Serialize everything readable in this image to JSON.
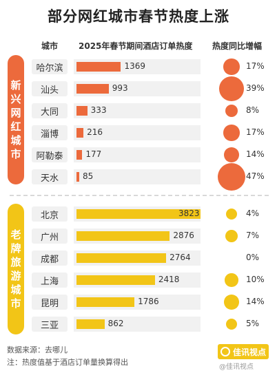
{
  "title": "部分网红城市春节热度上涨",
  "headers": {
    "city": "城市",
    "heat": "2025年春节期间酒店订单热度",
    "growth": "热度同比增幅"
  },
  "colors": {
    "new_cities": "#ec6a3c",
    "old_cities": "#f2c517"
  },
  "chart_data": {
    "type": "bar",
    "title": "部分网红城市春节热度上涨",
    "groups": [
      {
        "name": "新兴网红城市",
        "color": "#ec6a3c",
        "rows": [
          {
            "city": "哈尔滨",
            "heat": 1369,
            "growth": 17
          },
          {
            "city": "汕头",
            "heat": 993,
            "growth": 39
          },
          {
            "city": "大同",
            "heat": 333,
            "growth": 8
          },
          {
            "city": "淄博",
            "heat": 216,
            "growth": 17
          },
          {
            "city": "阿勒泰",
            "heat": 177,
            "growth": 14
          },
          {
            "city": "天水",
            "heat": 85,
            "growth": 47
          }
        ]
      },
      {
        "name": "老牌旅游城市",
        "color": "#f2c517",
        "rows": [
          {
            "city": "北京",
            "heat": 3823,
            "growth": 4
          },
          {
            "city": "广州",
            "heat": 2876,
            "growth": 7
          },
          {
            "city": "成都",
            "heat": 2764,
            "growth": 0
          },
          {
            "city": "上海",
            "heat": 2418,
            "growth": 10
          },
          {
            "city": "昆明",
            "heat": 1786,
            "growth": 14
          },
          {
            "city": "三亚",
            "heat": 862,
            "growth": 5
          }
        ]
      }
    ],
    "heat_max": 3823,
    "growth_max": 47,
    "growth_unit": "%"
  },
  "footer": {
    "source": "数据来源：去哪儿",
    "note": "注：热度值基于酒店订单量换算得出",
    "logo_text": "佳讯视点",
    "watermark": "@佳讯视点"
  }
}
